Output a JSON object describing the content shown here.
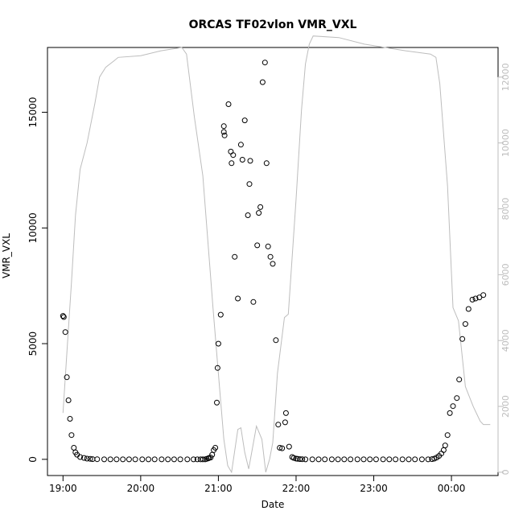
{
  "chart_data": {
    "type": "scatter",
    "title": "ORCAS TF02vlon VMR_VXL",
    "xlabel": "Date",
    "ylabel": "VMR_VXL",
    "x_unit": "hours since 19:00",
    "xlim": [
      -0.2,
      5.6
    ],
    "ylim": [
      -700,
      17800
    ],
    "y2lim": [
      -100,
      12900
    ],
    "x_ticks": [
      {
        "value": 0,
        "label": "19:00"
      },
      {
        "value": 1,
        "label": "20:00"
      },
      {
        "value": 2,
        "label": "21:00"
      },
      {
        "value": 3,
        "label": "22:00"
      },
      {
        "value": 4,
        "label": "23:00"
      },
      {
        "value": 5,
        "label": "00:00"
      }
    ],
    "y_ticks": [
      {
        "value": 0,
        "label": "0"
      },
      {
        "value": 5000,
        "label": "5000"
      },
      {
        "value": 10000,
        "label": "10000"
      },
      {
        "value": 15000,
        "label": "15000"
      }
    ],
    "y2_ticks": [
      {
        "value": 0,
        "label": "0"
      },
      {
        "value": 2000,
        "label": "2000"
      },
      {
        "value": 4000,
        "label": "4000"
      },
      {
        "value": 6000,
        "label": "6000"
      },
      {
        "value": 8000,
        "label": "8000"
      },
      {
        "value": 10000,
        "label": "10000"
      },
      {
        "value": 12000,
        "label": "12000"
      }
    ],
    "grid": false,
    "series": [
      {
        "kind": "points",
        "axis": "left",
        "marker": "open-circle",
        "color": "#000000",
        "points": [
          [
            0.0,
            6200
          ],
          [
            0.01,
            6150
          ],
          [
            0.03,
            5500
          ],
          [
            0.05,
            3550
          ],
          [
            0.07,
            2550
          ],
          [
            0.09,
            1750
          ],
          [
            0.11,
            1050
          ],
          [
            0.14,
            500
          ],
          [
            0.16,
            300
          ],
          [
            0.18,
            200
          ],
          [
            0.22,
            100
          ],
          [
            0.27,
            60
          ],
          [
            0.31,
            30
          ],
          [
            0.35,
            20
          ],
          [
            0.38,
            10
          ],
          [
            0.44,
            5
          ],
          [
            0.53,
            0
          ],
          [
            0.61,
            0
          ],
          [
            0.69,
            0
          ],
          [
            0.77,
            0
          ],
          [
            0.85,
            0
          ],
          [
            0.93,
            0
          ],
          [
            1.02,
            0
          ],
          [
            1.1,
            0
          ],
          [
            1.18,
            0
          ],
          [
            1.27,
            0
          ],
          [
            1.35,
            0
          ],
          [
            1.43,
            0
          ],
          [
            1.51,
            0
          ],
          [
            1.6,
            0
          ],
          [
            1.68,
            0
          ],
          [
            1.73,
            0
          ],
          [
            1.77,
            0
          ],
          [
            1.8,
            0
          ],
          [
            1.83,
            0
          ],
          [
            1.85,
            20
          ],
          [
            1.87,
            40
          ],
          [
            1.88,
            60
          ],
          [
            1.9,
            80
          ],
          [
            1.92,
            200
          ],
          [
            1.94,
            400
          ],
          [
            1.96,
            500
          ],
          [
            1.98,
            2450
          ],
          [
            1.99,
            3950
          ],
          [
            2.0,
            5000
          ],
          [
            2.03,
            6250
          ],
          [
            2.07,
            14150
          ],
          [
            2.07,
            14400
          ],
          [
            2.08,
            14000
          ],
          [
            2.13,
            15350
          ],
          [
            2.16,
            13300
          ],
          [
            2.17,
            12800
          ],
          [
            2.19,
            13150
          ],
          [
            2.21,
            8750
          ],
          [
            2.25,
            6950
          ],
          [
            2.29,
            13600
          ],
          [
            2.31,
            12950
          ],
          [
            2.34,
            14650
          ],
          [
            2.38,
            10550
          ],
          [
            2.4,
            11900
          ],
          [
            2.41,
            12900
          ],
          [
            2.45,
            6800
          ],
          [
            2.5,
            9250
          ],
          [
            2.52,
            10650
          ],
          [
            2.54,
            10900
          ],
          [
            2.57,
            16300
          ],
          [
            2.6,
            17150
          ],
          [
            2.62,
            12800
          ],
          [
            2.64,
            9200
          ],
          [
            2.67,
            8750
          ],
          [
            2.7,
            8450
          ],
          [
            2.74,
            5150
          ],
          [
            2.77,
            1500
          ],
          [
            2.79,
            500
          ],
          [
            2.82,
            480
          ],
          [
            2.86,
            1600
          ],
          [
            2.87,
            2000
          ],
          [
            2.91,
            550
          ],
          [
            2.95,
            100
          ],
          [
            2.97,
            60
          ],
          [
            3.0,
            30
          ],
          [
            3.02,
            20
          ],
          [
            3.05,
            10
          ],
          [
            3.08,
            5
          ],
          [
            3.12,
            0
          ],
          [
            3.21,
            0
          ],
          [
            3.29,
            0
          ],
          [
            3.37,
            0
          ],
          [
            3.46,
            0
          ],
          [
            3.54,
            0
          ],
          [
            3.62,
            0
          ],
          [
            3.7,
            0
          ],
          [
            3.79,
            0
          ],
          [
            3.87,
            0
          ],
          [
            3.95,
            0
          ],
          [
            4.03,
            0
          ],
          [
            4.12,
            0
          ],
          [
            4.2,
            0
          ],
          [
            4.28,
            0
          ],
          [
            4.37,
            0
          ],
          [
            4.45,
            0
          ],
          [
            4.53,
            0
          ],
          [
            4.62,
            0
          ],
          [
            4.7,
            0
          ],
          [
            4.75,
            10
          ],
          [
            4.78,
            30
          ],
          [
            4.81,
            80
          ],
          [
            4.84,
            150
          ],
          [
            4.87,
            250
          ],
          [
            4.9,
            400
          ],
          [
            4.92,
            600
          ],
          [
            4.95,
            1050
          ],
          [
            4.98,
            2000
          ],
          [
            5.02,
            2300
          ],
          [
            5.07,
            2650
          ],
          [
            5.1,
            3450
          ],
          [
            5.14,
            5200
          ],
          [
            5.18,
            5850
          ],
          [
            5.22,
            6500
          ],
          [
            5.27,
            6900
          ],
          [
            5.31,
            6950
          ],
          [
            5.36,
            7000
          ],
          [
            5.41,
            7100
          ]
        ]
      },
      {
        "kind": "line",
        "axis": "right",
        "color": "#bdbdbd",
        "points": [
          [
            0.0,
            1800
          ],
          [
            0.06,
            4000
          ],
          [
            0.11,
            5800
          ],
          [
            0.16,
            7800
          ],
          [
            0.22,
            9200
          ],
          [
            0.31,
            10000
          ],
          [
            0.41,
            11200
          ],
          [
            0.47,
            12000
          ],
          [
            0.55,
            12300
          ],
          [
            0.66,
            12500
          ],
          [
            0.71,
            12600
          ],
          [
            1.0,
            12650
          ],
          [
            1.26,
            12800
          ],
          [
            1.53,
            12900
          ],
          [
            1.59,
            12700
          ],
          [
            1.69,
            10800
          ],
          [
            1.8,
            9000
          ],
          [
            1.93,
            5000
          ],
          [
            2.0,
            3000
          ],
          [
            2.07,
            1000
          ],
          [
            2.12,
            200
          ],
          [
            2.17,
            0
          ],
          [
            2.25,
            1300
          ],
          [
            2.29,
            1350
          ],
          [
            2.34,
            600
          ],
          [
            2.39,
            100
          ],
          [
            2.49,
            1400
          ],
          [
            2.56,
            1000
          ],
          [
            2.61,
            0
          ],
          [
            2.66,
            400
          ],
          [
            2.7,
            900
          ],
          [
            2.76,
            3000
          ],
          [
            2.85,
            4700
          ],
          [
            2.9,
            4800
          ],
          [
            3.0,
            8300
          ],
          [
            3.07,
            11000
          ],
          [
            3.12,
            12400
          ],
          [
            3.17,
            13000
          ],
          [
            3.22,
            13250
          ],
          [
            3.55,
            13200
          ],
          [
            3.88,
            13000
          ],
          [
            4.41,
            12800
          ],
          [
            4.73,
            12700
          ],
          [
            4.8,
            12600
          ],
          [
            4.85,
            11800
          ],
          [
            4.95,
            8700
          ],
          [
            5.02,
            5000
          ],
          [
            5.09,
            4600
          ],
          [
            5.18,
            2600
          ],
          [
            5.28,
            2000
          ],
          [
            5.37,
            1550
          ],
          [
            5.41,
            1450
          ],
          [
            5.5,
            1450
          ]
        ]
      }
    ]
  }
}
